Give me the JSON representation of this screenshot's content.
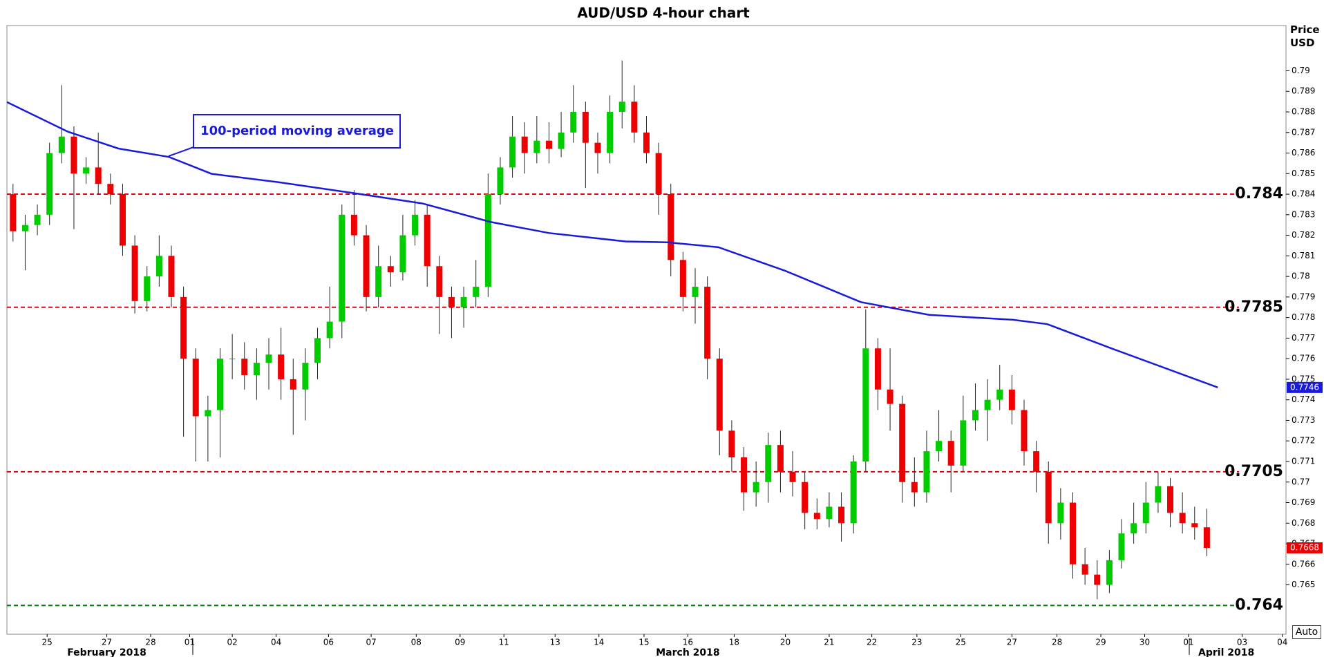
{
  "chart_data": {
    "type": "candlestick",
    "title": "AUD/USD 4-hour chart",
    "y_label": "Price USD",
    "auto_button": "Auto",
    "annotation": "100-period moving average",
    "up_color": "#00cc00",
    "down_color": "#ee0000",
    "ma_color": "#1a1adb",
    "grid": false,
    "xlim": [
      -0.5,
      104.5
    ],
    "ylim": [
      0.7626,
      0.7922
    ],
    "yticks": [
      0.765,
      0.766,
      0.767,
      0.768,
      0.769,
      0.77,
      0.771,
      0.772,
      0.773,
      0.774,
      0.775,
      0.776,
      0.777,
      0.778,
      0.779,
      0.78,
      0.781,
      0.782,
      0.783,
      0.784,
      0.785,
      0.786,
      0.787,
      0.788,
      0.789,
      0.79
    ],
    "xticks": [
      {
        "value": 2.8,
        "label": "25"
      },
      {
        "value": 7.7,
        "label": "27"
      },
      {
        "value": 11.3,
        "label": "28"
      },
      {
        "value": 14.5,
        "label": "01"
      },
      {
        "value": 18.0,
        "label": "02"
      },
      {
        "value": 21.6,
        "label": "04"
      },
      {
        "value": 25.9,
        "label": "06"
      },
      {
        "value": 29.4,
        "label": "07"
      },
      {
        "value": 33.1,
        "label": "08"
      },
      {
        "value": 36.7,
        "label": "09"
      },
      {
        "value": 40.3,
        "label": "11"
      },
      {
        "value": 44.5,
        "label": "13"
      },
      {
        "value": 48.1,
        "label": "14"
      },
      {
        "value": 51.8,
        "label": "15"
      },
      {
        "value": 55.4,
        "label": "16"
      },
      {
        "value": 59.2,
        "label": "18"
      },
      {
        "value": 63.4,
        "label": "20"
      },
      {
        "value": 67.0,
        "label": "21"
      },
      {
        "value": 70.5,
        "label": "22"
      },
      {
        "value": 74.2,
        "label": "23"
      },
      {
        "value": 77.8,
        "label": "25"
      },
      {
        "value": 82.0,
        "label": "27"
      },
      {
        "value": 85.7,
        "label": "28"
      },
      {
        "value": 89.3,
        "label": "29"
      },
      {
        "value": 92.9,
        "label": "30"
      },
      {
        "value": 96.5,
        "label": "01"
      },
      {
        "value": 100.9,
        "label": "03"
      },
      {
        "value": 104.2,
        "label": "04"
      }
    ],
    "month_labels": [
      {
        "value": 7.7,
        "label": "February 2018"
      },
      {
        "value": 55.4,
        "label": "March 2018"
      },
      {
        "value": 99.6,
        "label": "April 2018"
      }
    ],
    "levels": [
      0.784,
      0.7785,
      0.7705,
      0.764
    ],
    "level_colors": [
      "#e8000b",
      "#e8000b",
      "#e8000b",
      "#008000"
    ],
    "candles": {
      "open": [
        0.784,
        0.7822,
        0.7825,
        0.783,
        0.786,
        0.7868,
        0.785,
        0.7853,
        0.7845,
        0.784,
        0.7815,
        0.7788,
        0.78,
        0.781,
        0.779,
        0.776,
        0.7732,
        0.7735,
        0.776,
        0.776,
        0.7752,
        0.7758,
        0.7762,
        0.775,
        0.7745,
        0.7758,
        0.777,
        0.7778,
        0.783,
        0.782,
        0.779,
        0.7805,
        0.7802,
        0.782,
        0.783,
        0.7805,
        0.779,
        0.7785,
        0.779,
        0.7795,
        0.784,
        0.7853,
        0.7868,
        0.786,
        0.7866,
        0.7862,
        0.787,
        0.788,
        0.7865,
        0.786,
        0.788,
        0.7885,
        0.787,
        0.786,
        0.784,
        0.7808,
        0.779,
        0.7795,
        0.776,
        0.7725,
        0.7712,
        0.7695,
        0.77,
        0.7718,
        0.7705,
        0.77,
        0.7685,
        0.7682,
        0.7688,
        0.768,
        0.771,
        0.7765,
        0.7745,
        0.7738,
        0.77,
        0.7695,
        0.7715,
        0.772,
        0.7708,
        0.773,
        0.7735,
        0.774,
        0.7745,
        0.7735,
        0.7715,
        0.7705,
        0.768,
        0.769,
        0.766,
        0.7655,
        0.765,
        0.7662,
        0.7675,
        0.768,
        0.769,
        0.7698,
        0.7685,
        0.768,
        0.7678
      ],
      "high": [
        0.7845,
        0.783,
        0.7835,
        0.7865,
        0.7893,
        0.7873,
        0.7858,
        0.787,
        0.785,
        0.7845,
        0.782,
        0.7805,
        0.782,
        0.7815,
        0.7795,
        0.7765,
        0.7742,
        0.7765,
        0.7772,
        0.7768,
        0.7765,
        0.777,
        0.7775,
        0.776,
        0.7765,
        0.7775,
        0.7795,
        0.7835,
        0.7842,
        0.7825,
        0.7815,
        0.781,
        0.783,
        0.7837,
        0.7835,
        0.781,
        0.7795,
        0.7795,
        0.7808,
        0.785,
        0.7858,
        0.7878,
        0.7875,
        0.7878,
        0.7875,
        0.788,
        0.7893,
        0.7885,
        0.787,
        0.7888,
        0.7905,
        0.7893,
        0.7878,
        0.7865,
        0.7845,
        0.7812,
        0.7804,
        0.78,
        0.7765,
        0.773,
        0.7717,
        0.771,
        0.7724,
        0.7725,
        0.7715,
        0.7705,
        0.7692,
        0.7695,
        0.7695,
        0.7713,
        0.7784,
        0.777,
        0.7765,
        0.7742,
        0.7712,
        0.7725,
        0.7735,
        0.7725,
        0.7742,
        0.7748,
        0.775,
        0.7757,
        0.7752,
        0.774,
        0.772,
        0.771,
        0.7697,
        0.7695,
        0.7668,
        0.7662,
        0.7667,
        0.7682,
        0.769,
        0.77,
        0.7705,
        0.7702,
        0.7695,
        0.7688,
        0.7687
      ],
      "low": [
        0.7817,
        0.7803,
        0.782,
        0.7825,
        0.7855,
        0.7823,
        0.7845,
        0.784,
        0.7835,
        0.781,
        0.7782,
        0.7783,
        0.7795,
        0.7785,
        0.7722,
        0.771,
        0.771,
        0.7712,
        0.775,
        0.7745,
        0.774,
        0.7745,
        0.774,
        0.7723,
        0.773,
        0.775,
        0.7765,
        0.777,
        0.7815,
        0.7783,
        0.7785,
        0.7795,
        0.7798,
        0.7815,
        0.7795,
        0.7772,
        0.777,
        0.7775,
        0.7785,
        0.779,
        0.7835,
        0.7848,
        0.785,
        0.7855,
        0.7855,
        0.7858,
        0.7865,
        0.7843,
        0.785,
        0.7855,
        0.7872,
        0.7865,
        0.7855,
        0.783,
        0.78,
        0.7783,
        0.7777,
        0.775,
        0.7713,
        0.7705,
        0.7686,
        0.7688,
        0.769,
        0.7695,
        0.7693,
        0.7677,
        0.7677,
        0.7678,
        0.7671,
        0.7675,
        0.7705,
        0.7735,
        0.7725,
        0.769,
        0.7688,
        0.769,
        0.771,
        0.7695,
        0.7705,
        0.7725,
        0.772,
        0.7735,
        0.7728,
        0.7708,
        0.7695,
        0.767,
        0.7672,
        0.7653,
        0.765,
        0.7643,
        0.7646,
        0.7658,
        0.767,
        0.7675,
        0.7685,
        0.7678,
        0.7675,
        0.7672,
        0.7664
      ],
      "close": [
        0.7822,
        0.7825,
        0.783,
        0.786,
        0.7868,
        0.785,
        0.7853,
        0.7845,
        0.784,
        0.7815,
        0.7788,
        0.78,
        0.781,
        0.779,
        0.776,
        0.7732,
        0.7735,
        0.776,
        0.776,
        0.7752,
        0.7758,
        0.7762,
        0.775,
        0.7745,
        0.7758,
        0.777,
        0.7778,
        0.783,
        0.782,
        0.779,
        0.7805,
        0.7802,
        0.782,
        0.783,
        0.7805,
        0.779,
        0.7785,
        0.779,
        0.7795,
        0.784,
        0.7853,
        0.7868,
        0.786,
        0.7866,
        0.7862,
        0.787,
        0.788,
        0.7865,
        0.786,
        0.788,
        0.7885,
        0.787,
        0.786,
        0.784,
        0.7808,
        0.779,
        0.7795,
        0.776,
        0.7725,
        0.7712,
        0.7695,
        0.77,
        0.7718,
        0.7705,
        0.77,
        0.7685,
        0.7682,
        0.7688,
        0.768,
        0.771,
        0.7765,
        0.7745,
        0.7738,
        0.77,
        0.7695,
        0.7715,
        0.772,
        0.7708,
        0.773,
        0.7735,
        0.774,
        0.7745,
        0.7735,
        0.7715,
        0.7705,
        0.768,
        0.769,
        0.766,
        0.7655,
        0.765,
        0.7662,
        0.7675,
        0.768,
        0.769,
        0.7698,
        0.7685,
        0.768,
        0.7678,
        0.7668
      ]
    },
    "ma": {
      "x": [
        -0.5,
        4.5,
        8.65,
        12.8,
        16.3,
        21.8,
        28.1,
        33.6,
        39.2,
        44.0,
        50.3,
        53.7,
        57.9,
        63.4,
        69.6,
        75.2,
        82.1,
        84.9,
        90.4,
        98.9
      ],
      "values": [
        0.78848,
        0.78704,
        0.78622,
        0.78581,
        0.78499,
        0.78458,
        0.78404,
        0.78355,
        0.78265,
        0.78211,
        0.7817,
        0.78166,
        0.78142,
        0.78027,
        0.77875,
        0.77813,
        0.77789,
        0.77768,
        0.77645,
        0.7746
      ]
    }
  }
}
